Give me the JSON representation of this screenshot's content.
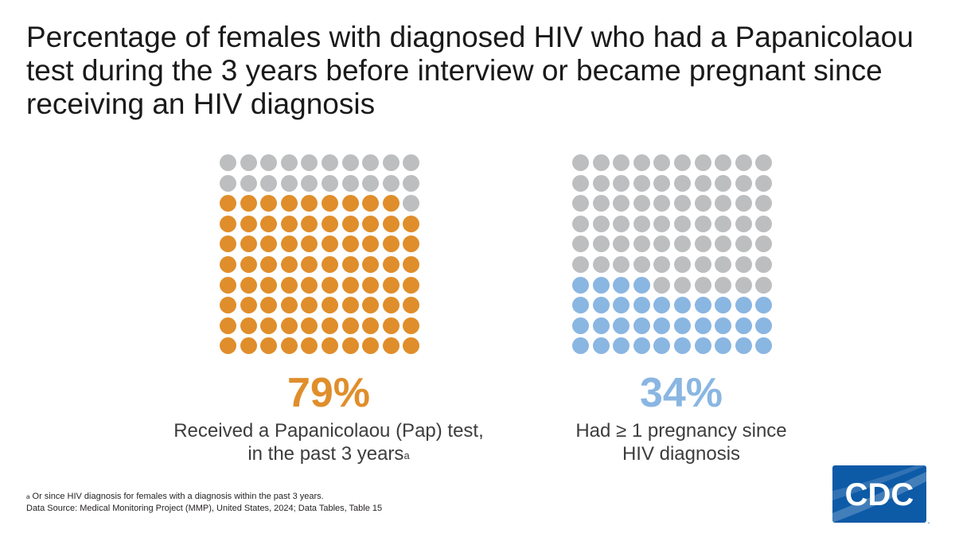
{
  "title": "Percentage of females with diagnosed HIV who had a Papanicolaou test during the 3 years before interview or became pregnant since receiving an HIV diagnosis",
  "colors": {
    "inactive": "#bcbec0",
    "pap": "#e08e2b",
    "pregnancy": "#8ab6e2",
    "logo_blue": "#0d5aa7"
  },
  "chart_data": [
    {
      "type": "waffle",
      "grid": [
        10,
        10
      ],
      "fill_order": "bottom-up, left-to-right within row from bottom",
      "value": 79,
      "value_label": "79%",
      "caption_line1": "Received a Papanicolaou (Pap) test,",
      "caption_line2": "in the past 3 years",
      "caption_sup": "a",
      "color_key": "pap"
    },
    {
      "type": "waffle",
      "grid": [
        10,
        10
      ],
      "fill_order": "bottom-up, left-to-right within row from bottom",
      "value": 34,
      "value_label": "34%",
      "caption_line1": "Had ≥ 1 pregnancy since",
      "caption_line2": "HIV diagnosis",
      "color_key": "pregnancy"
    }
  ],
  "footnotes": {
    "note_sup": "a",
    "note_text": " Or since HIV diagnosis for females with a diagnosis within the past 3 years.",
    "source": "Data Source: Medical Monitoring Project (MMP), United States, 2024; Data Tables, Table 15"
  },
  "logo": {
    "text": "CDC",
    "tm": "™",
    "icon": "cdc-logo-icon"
  }
}
